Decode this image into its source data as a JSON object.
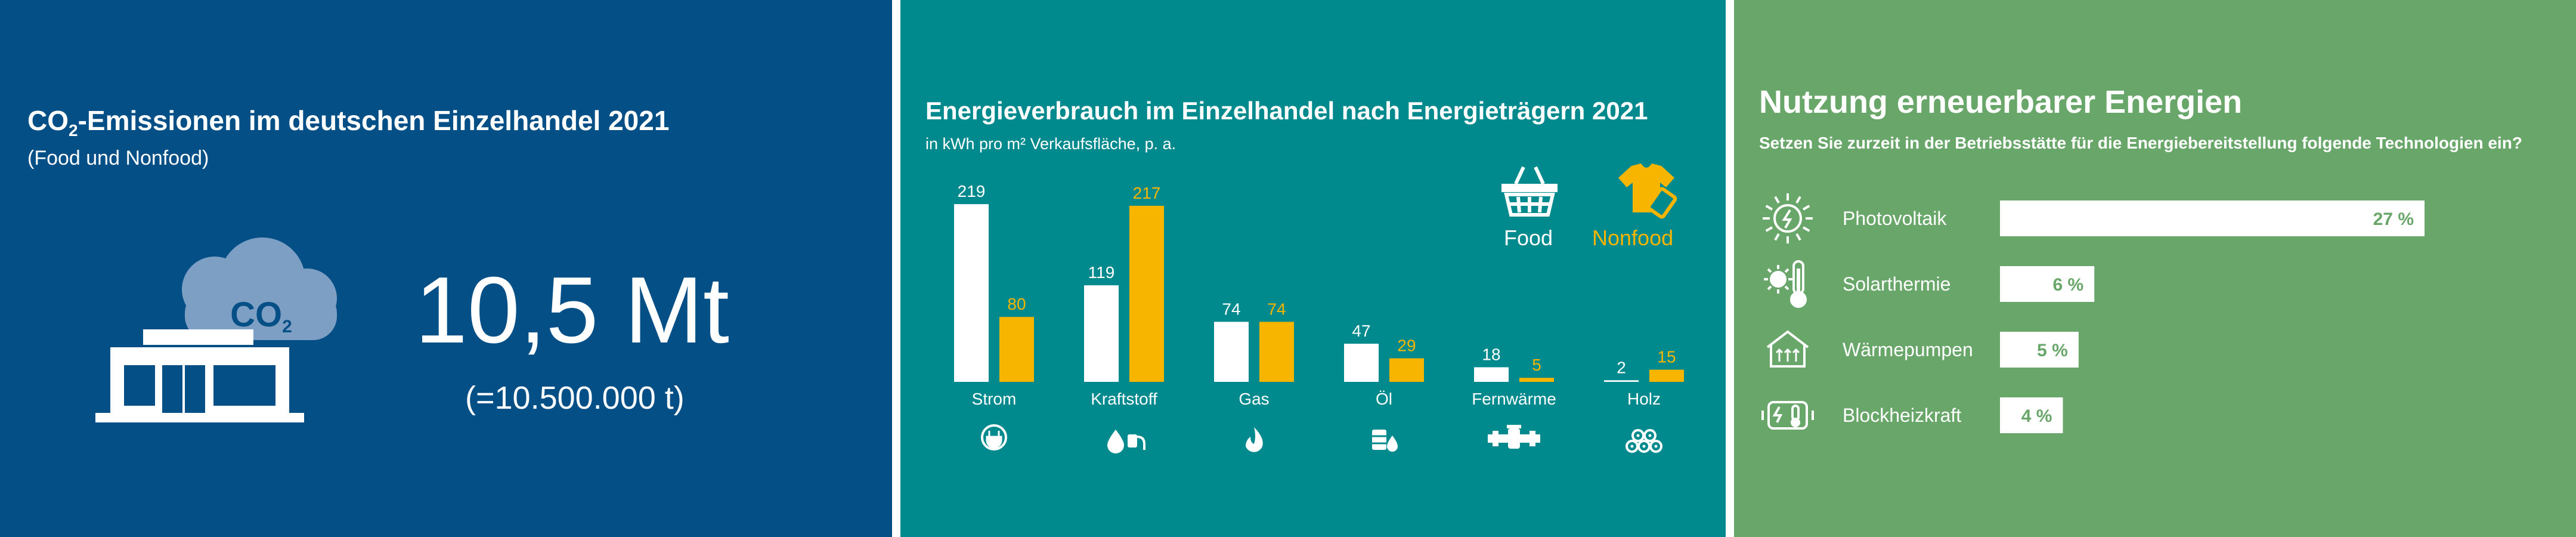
{
  "emissions": {
    "title_prefix": "CO",
    "title_sub": "2",
    "title_suffix": "-Emissionen im deutschen Einzelhandel 2021",
    "subtitle": "(Food und Nonfood)",
    "cloud_label": "CO",
    "cloud_sub": "2",
    "value": "10,5 Mt",
    "value_detail": "(=10.500.000 t)"
  },
  "chart_data": [
    {
      "type": "bar",
      "title": "Energieverbrauch im Einzelhandel nach Energieträgern 2021",
      "unit_label": "in kWh pro m² Verkaufsfläche, p. a.",
      "categories": [
        "Strom",
        "Kraftstoff",
        "Gas",
        "Öl",
        "Fernwärme",
        "Holz"
      ],
      "category_icons": [
        "plug-icon",
        "fuel-pump-icon",
        "flame-icon",
        "oil-barrel-icon",
        "district-heating-pipe-icon",
        "wood-logs-icon"
      ],
      "series": [
        {
          "name": "Food",
          "color": "#ffffff",
          "label_color": "#ffffff",
          "values": [
            219,
            119,
            74,
            47,
            18,
            2
          ],
          "labels": [
            "219",
            "119",
            "74",
            "47",
            "18",
            "2"
          ]
        },
        {
          "name": "Nonfood",
          "color": "#f7b500",
          "label_color": "#f7b500",
          "values": [
            80,
            217,
            74,
            29,
            5,
            15
          ],
          "labels": [
            "80",
            "217",
            "74",
            "29",
            "5",
            "15"
          ]
        }
      ],
      "legend": [
        {
          "name": "Food",
          "icon": "shopping-basket-icon",
          "color": "#ffffff"
        },
        {
          "name": "Nonfood",
          "icon": "tshirt-tag-icon",
          "color": "#f7b500"
        }
      ],
      "legend_position": "top-right",
      "ylim": [
        0,
        225
      ],
      "grid": false
    },
    {
      "type": "bar",
      "orientation": "horizontal",
      "title": "Nutzung erneuerbarer Energien",
      "subtitle": "Setzen Sie zurzeit in der Betriebsstätte für die Energiebereitstellung folgende Technologien ein?",
      "categories": [
        "Photovoltaik",
        "Solarthermie",
        "Wärmepumpen",
        "Blockheizkraft"
      ],
      "category_icons": [
        "solar-panel-sun-icon",
        "sun-thermometer-icon",
        "heat-pump-house-icon",
        "chp-generator-icon"
      ],
      "values": [
        27,
        6,
        5,
        4
      ],
      "labels": [
        "27 %",
        "6 %",
        "5 %",
        "4 %"
      ],
      "unit": "%",
      "xlim": [
        0,
        27
      ],
      "bar_color": "#ffffff",
      "label_color": "#69a66a",
      "grid": false
    }
  ],
  "colors": {
    "panel1_bg": "#054f87",
    "panel2_bg": "#008a8d",
    "panel3_bg": "#69a66a",
    "nonfood_accent": "#f7b500"
  }
}
